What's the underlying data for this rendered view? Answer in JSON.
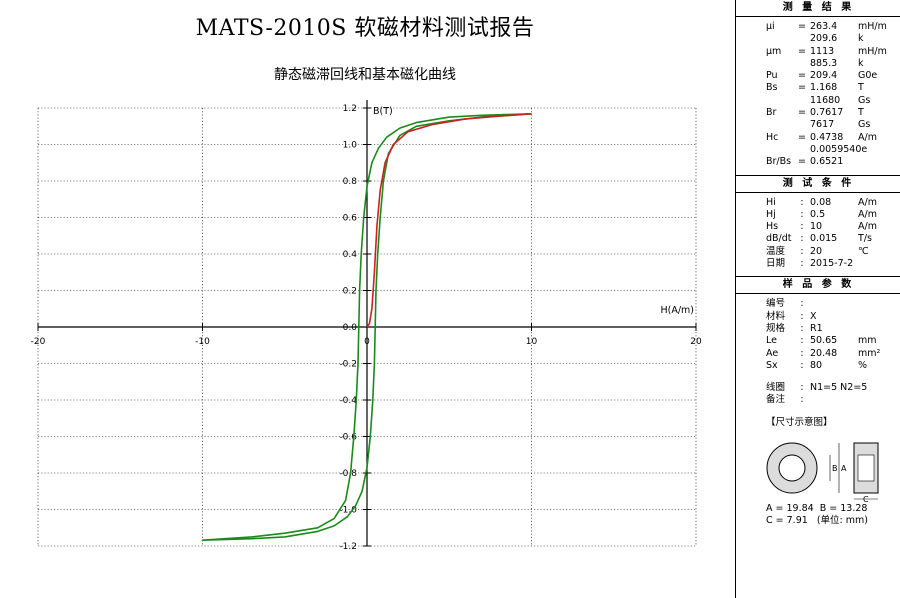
{
  "report_title": "MATS-2010S 软磁材料测试报告",
  "chart_title": "静态磁滞回线和基本磁化曲线",
  "chart_data": {
    "type": "line",
    "title": "静态磁滞回线和基本磁化曲线",
    "xlabel": "H(A/m)",
    "ylabel": "B(T)",
    "xlim": [
      -20,
      20
    ],
    "ylim": [
      -1.2,
      1.2
    ],
    "x_ticks": [
      -20,
      -10,
      0,
      10,
      20
    ],
    "y_ticks": [
      -1.2,
      -1.0,
      -0.8,
      -0.6,
      -0.4,
      -0.2,
      0.0,
      0.2,
      0.4,
      0.6,
      0.8,
      1.0,
      1.2
    ],
    "x_tick_labels": [
      "-20",
      "-10",
      "0",
      "10",
      "20"
    ],
    "y_tick_labels": [
      "-1.2",
      "-1.0",
      "-0.8",
      "-0.6",
      "-0.4",
      "-0.2",
      "0.0",
      "0.2",
      "0.4",
      "0.6",
      "0.8",
      "1.0",
      "1.2"
    ],
    "grid": true,
    "series": [
      {
        "color": "#1a8a1a",
        "points": [
          [
            10,
            1.168
          ],
          [
            7,
            1.16
          ],
          [
            5,
            1.15
          ],
          [
            3,
            1.12
          ],
          [
            2,
            1.09
          ],
          [
            1.2,
            1.04
          ],
          [
            0.7,
            0.98
          ],
          [
            0.3,
            0.9
          ],
          [
            0,
            0.77
          ],
          [
            -0.2,
            0.6
          ],
          [
            -0.35,
            0.4
          ],
          [
            -0.45,
            0.2
          ],
          [
            -0.5,
            0.0
          ],
          [
            -0.55,
            -0.2
          ],
          [
            -0.65,
            -0.4
          ],
          [
            -0.8,
            -0.6
          ],
          [
            -1.0,
            -0.8
          ],
          [
            -1.3,
            -0.95
          ],
          [
            -2,
            -1.05
          ],
          [
            -3,
            -1.1
          ],
          [
            -5,
            -1.13
          ],
          [
            -7,
            -1.15
          ],
          [
            -10,
            -1.168
          ],
          [
            -7,
            -1.16
          ],
          [
            -5,
            -1.15
          ],
          [
            -3,
            -1.12
          ],
          [
            -2,
            -1.09
          ],
          [
            -1.2,
            -1.04
          ],
          [
            -0.7,
            -0.98
          ],
          [
            -0.3,
            -0.9
          ],
          [
            0,
            -0.77
          ],
          [
            0.2,
            -0.6
          ],
          [
            0.35,
            -0.4
          ],
          [
            0.45,
            -0.2
          ],
          [
            0.5,
            0.0
          ],
          [
            0.55,
            0.2
          ],
          [
            0.65,
            0.4
          ],
          [
            0.8,
            0.6
          ],
          [
            1.0,
            0.8
          ],
          [
            1.3,
            0.95
          ],
          [
            2,
            1.05
          ],
          [
            3,
            1.1
          ],
          [
            5,
            1.13
          ],
          [
            7,
            1.15
          ],
          [
            10,
            1.168
          ]
        ]
      },
      {
        "color": "#cc2020",
        "points": [
          [
            0,
            0
          ],
          [
            0.15,
            0.02
          ],
          [
            0.3,
            0.1
          ],
          [
            0.45,
            0.3
          ],
          [
            0.6,
            0.55
          ],
          [
            0.8,
            0.75
          ],
          [
            1.1,
            0.9
          ],
          [
            1.6,
            1.0
          ],
          [
            2.5,
            1.07
          ],
          [
            4,
            1.11
          ],
          [
            6,
            1.14
          ],
          [
            8,
            1.155
          ],
          [
            10,
            1.168
          ]
        ]
      }
    ]
  },
  "panel": {
    "results": {
      "header": "测 量 结 果",
      "rows": [
        {
          "label": "μi",
          "sep": "=",
          "value": "263.4",
          "unit": "mH/m"
        },
        {
          "label": "",
          "sep": "",
          "value": "209.6",
          "unit": "k"
        },
        {
          "label": "μm",
          "sep": "=",
          "value": "1113",
          "unit": "mH/m"
        },
        {
          "label": "",
          "sep": "",
          "value": "885.3",
          "unit": "k"
        },
        {
          "label": "Pu",
          "sep": "=",
          "value": "209.4",
          "unit": "G0e"
        },
        {
          "label": "Bs",
          "sep": "=",
          "value": "1.168",
          "unit": "T"
        },
        {
          "label": "",
          "sep": "",
          "value": "11680",
          "unit": "Gs"
        },
        {
          "label": "Br",
          "sep": "=",
          "value": "0.7617",
          "unit": "T"
        },
        {
          "label": "",
          "sep": "",
          "value": "7617",
          "unit": "Gs"
        },
        {
          "label": "Hc",
          "sep": "=",
          "value": "0.4738",
          "unit": "A/m"
        },
        {
          "label": "",
          "sep": "",
          "value": "0.0059540e",
          "unit": ""
        },
        {
          "label": "Br/Bs",
          "sep": "=",
          "value": "0.6521",
          "unit": ""
        }
      ]
    },
    "conditions": {
      "header": "测 试 条 件",
      "rows": [
        {
          "label": "Hi",
          "sep": ":",
          "value": "0.08",
          "unit": "A/m"
        },
        {
          "label": "Hj",
          "sep": ":",
          "value": "0.5",
          "unit": "A/m"
        },
        {
          "label": "Hs",
          "sep": ":",
          "value": "10",
          "unit": "A/m"
        },
        {
          "label": "dB/dt",
          "sep": ":",
          "value": "0.015",
          "unit": "T/s"
        },
        {
          "label": "温度",
          "sep": ":",
          "value": "20",
          "unit": "℃"
        },
        {
          "label": "日期",
          "sep": ":",
          "value": "2015-7-2",
          "unit": ""
        }
      ]
    },
    "sample": {
      "header": "样 品 参 数",
      "rows": [
        {
          "label": "编号",
          "sep": ":",
          "value": "",
          "unit": ""
        },
        {
          "label": "材料",
          "sep": ":",
          "value": "X",
          "unit": ""
        },
        {
          "label": "规格",
          "sep": ":",
          "value": "R1",
          "unit": ""
        },
        {
          "label": "Le",
          "sep": ":",
          "value": "50.65",
          "unit": "mm"
        },
        {
          "label": "Ae",
          "sep": ":",
          "value": "20.48",
          "unit": "mm²"
        },
        {
          "label": "Sx",
          "sep": ":",
          "value": "80",
          "unit": "%"
        }
      ],
      "coil_label": "线圈",
      "coil_value": "N1=5 N2=5",
      "remark_label": "备注",
      "remark_value": "",
      "diagram_title": "【尺寸示意图】",
      "dim_label_b": "B",
      "dim_label_a": "A",
      "dim_label_c": "C",
      "dims_line1": "A = 19.84  B = 13.28",
      "dims_line2": "C = 7.91   (单位: mm)"
    }
  }
}
